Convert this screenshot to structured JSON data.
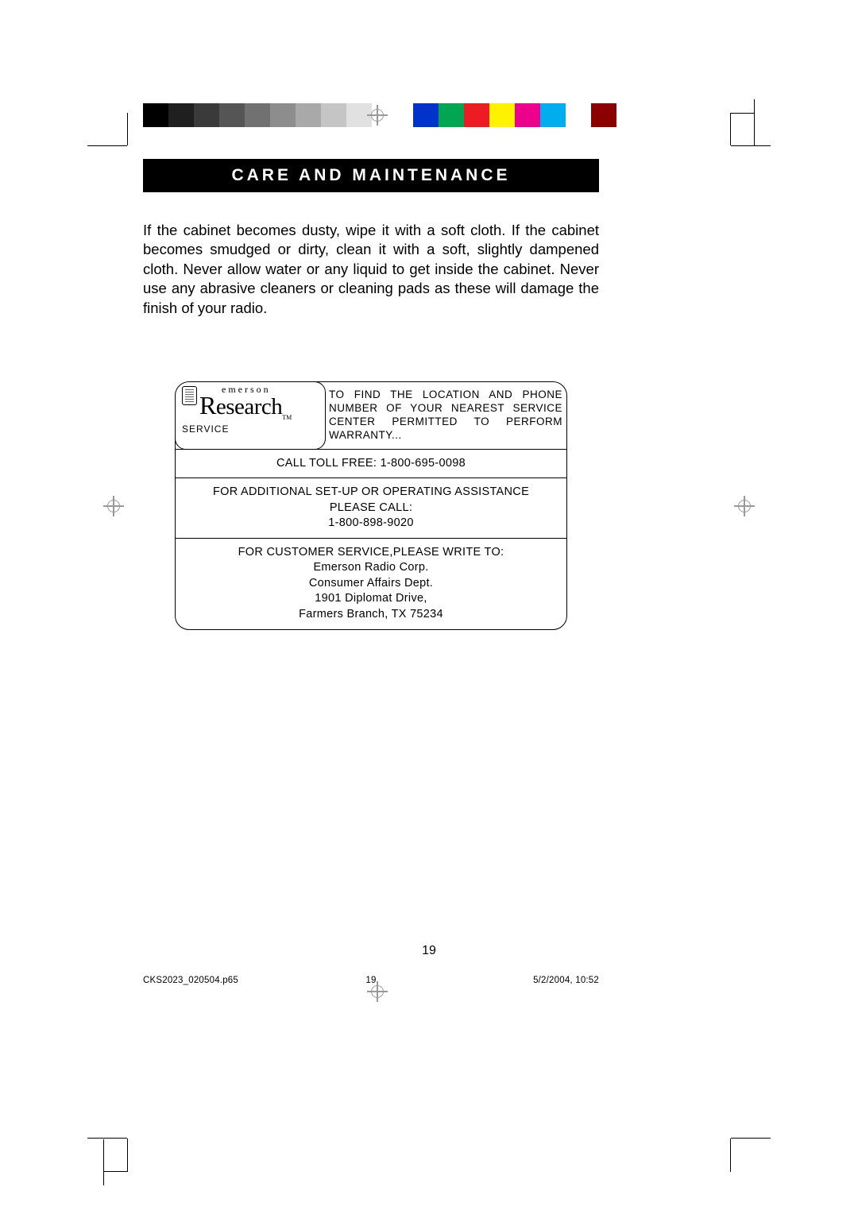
{
  "header": {
    "title": "CARE AND MAINTENANCE"
  },
  "body": "If the cabinet becomes dusty, wipe it with a soft cloth. If the cabinet becomes smudged or dirty, clean it with a soft, slightly dampened cloth. Never allow water or any liquid to get inside the cabinet. Never use any abrasive cleaners or cleaning pads as these will damage the finish of your radio.",
  "service": {
    "logo_top": "emerson",
    "logo_main": "Research",
    "logo_tm": "TM",
    "service_label": "SERVICE",
    "warranty_text": "TO FIND THE LOCATION AND PHONE NUMBER OF YOUR NEAREST SERVICE CENTER PERMITTED TO PERFORM WARRANTY...",
    "toll_free_label": "CALL TOLL FREE: ",
    "toll_free_number": "1-800-695-0098",
    "assist_line1": "FOR ADDITIONAL SET-UP OR OPERATING ASSISTANCE",
    "assist_line2": "PLEASE CALL:",
    "assist_number": "1-800-898-9020",
    "cs_line1": "FOR CUSTOMER SERVICE,PLEASE WRITE TO:",
    "cs_line2": "Emerson Radio Corp.",
    "cs_line3": "Consumer Affairs Dept.",
    "cs_line4": "1901 Diplomat Drive,",
    "cs_line5": "Farmers Branch, TX 75234"
  },
  "page_number": "19",
  "footer": {
    "left": "CKS2023_020504.p65",
    "mid": "19",
    "right": "5/2/2004, 10:52"
  },
  "colorbar_gray": [
    "#000000",
    "#1f1f1f",
    "#3a3a3a",
    "#555555",
    "#717171",
    "#8d8d8d",
    "#a9a9a9",
    "#c5c5c5",
    "#e1e1e1"
  ],
  "colorbar_color": [
    "#0033cc",
    "#00a651",
    "#ed1c24",
    "#fff200",
    "#ec008c",
    "#00aeef",
    "#ffffff",
    "#8b0000"
  ]
}
